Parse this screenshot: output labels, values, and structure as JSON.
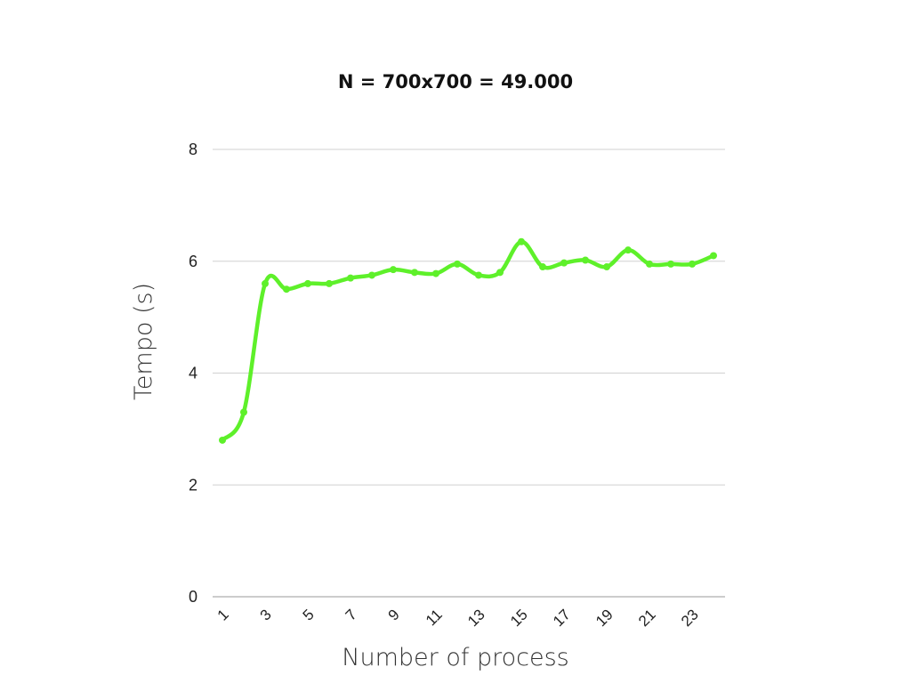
{
  "chart_data": {
    "type": "line",
    "title": "N = 700x700 = 49.000",
    "xlabel": "Number of process",
    "ylabel": "Tempo (s)",
    "ylim": [
      0,
      8
    ],
    "yticks": [
      "0",
      "2",
      "4",
      "6",
      "8"
    ],
    "xlim": [
      1,
      24
    ],
    "xtick_labels": [
      "1",
      "3",
      "5",
      "7",
      "9",
      "11",
      "13",
      "15",
      "17",
      "19",
      "21",
      "23"
    ],
    "grid": true,
    "legend": "none",
    "series": [
      {
        "color": "#5ef02a",
        "x": [
          1,
          2,
          3,
          4,
          5,
          6,
          7,
          8,
          9,
          10,
          11,
          12,
          13,
          14,
          15,
          16,
          17,
          18,
          19,
          20,
          21,
          22,
          23,
          24
        ],
        "values": [
          2.8,
          3.3,
          5.6,
          5.5,
          5.6,
          5.6,
          5.7,
          5.75,
          5.85,
          5.8,
          5.78,
          5.95,
          5.75,
          5.8,
          6.35,
          5.9,
          5.97,
          6.02,
          5.9,
          6.2,
          5.95,
          5.95,
          5.95,
          6.1
        ]
      }
    ]
  }
}
